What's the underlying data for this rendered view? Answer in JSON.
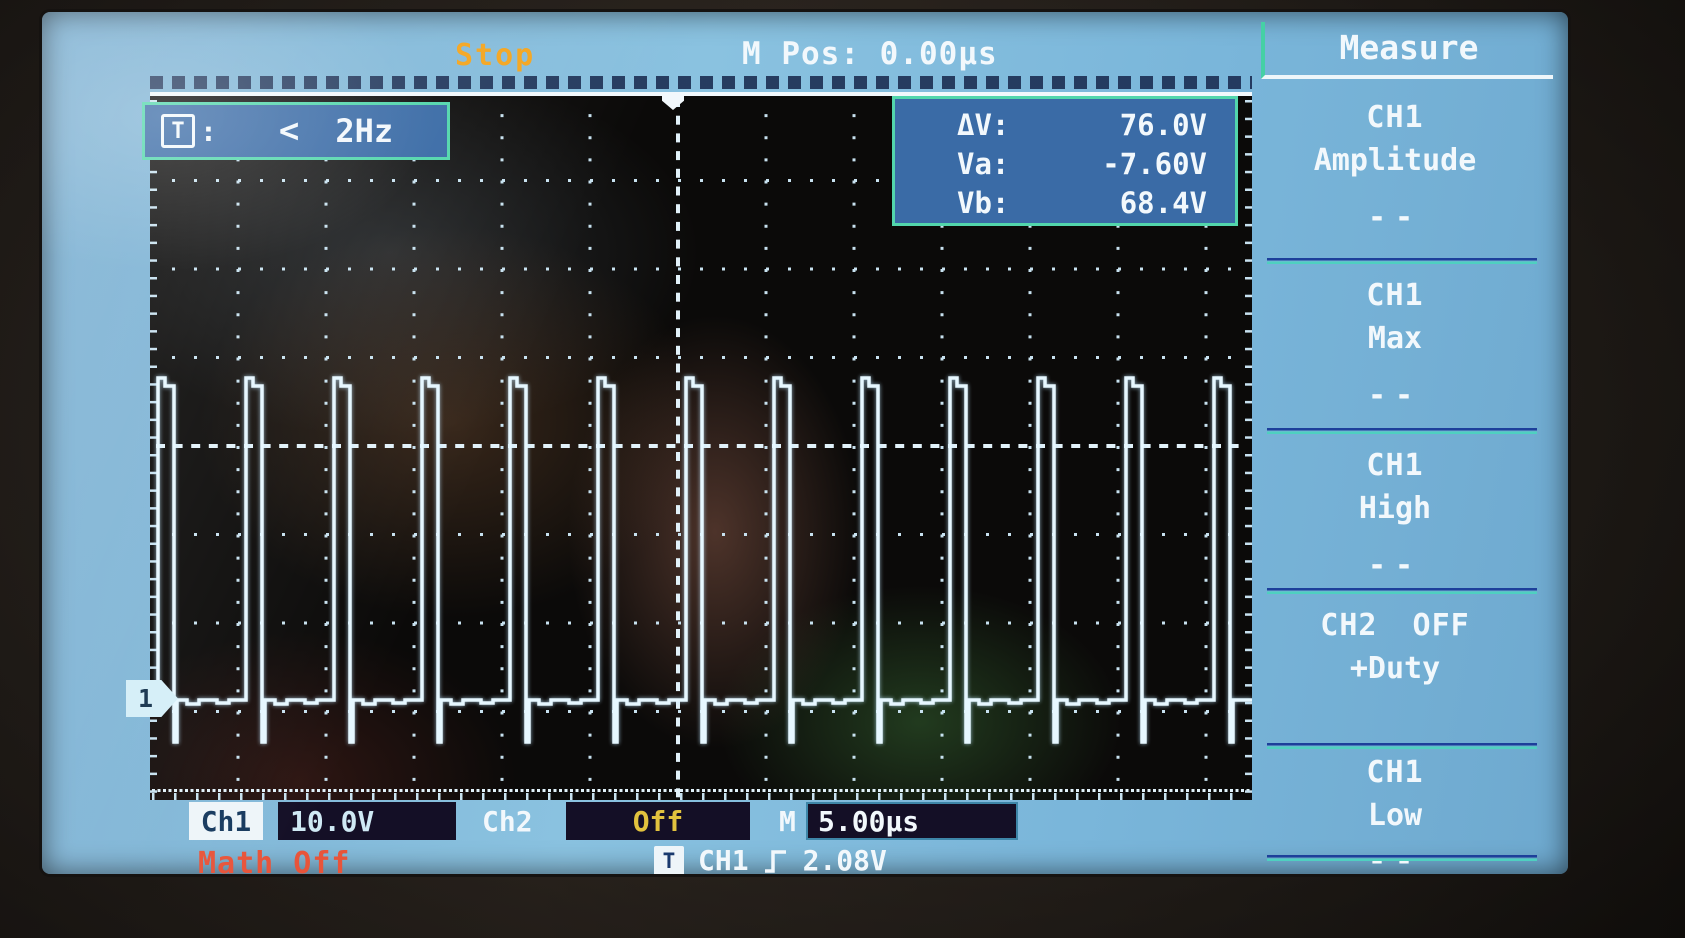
{
  "top_bar": {
    "acquisition_status": "Stop",
    "horizontal_position": "M Pos: 0.00µs"
  },
  "trigger_info": {
    "icon": "T",
    "separator": ":",
    "condition": "<",
    "frequency": "2Hz"
  },
  "measurement_overlay": {
    "rows": [
      {
        "label": "ΔV:",
        "value": "76.0V"
      },
      {
        "label": "Va:",
        "value": "-7.60V"
      },
      {
        "label": "Vb:",
        "value": "68.4V"
      }
    ]
  },
  "sidebar": {
    "title": "Measure",
    "items": [
      {
        "source": "CH1",
        "type": "Amplitude",
        "value": "--"
      },
      {
        "source": "CH1",
        "type": "Max",
        "value": "--"
      },
      {
        "source": "CH1",
        "type": "High",
        "value": "--"
      },
      {
        "source": "CH2 OFF",
        "type": "+Duty",
        "value": ""
      },
      {
        "source": "CH1",
        "type": "Low",
        "value": "--"
      }
    ]
  },
  "status_bar": {
    "ch1_label": "Ch1",
    "ch1_scale": "10.0V",
    "ch2_label": "Ch2",
    "ch2_state": "Off",
    "timebase_label": "M",
    "timebase": "5.00µs",
    "math_status": "Math Off",
    "trigger_icon": "T",
    "trigger_source": "CH1",
    "trigger_level": "2.08V"
  },
  "channel_marker": {
    "label": "1"
  },
  "waveform": {
    "channel": "CH1",
    "shape": "pulse-train",
    "pulses_visible": 13,
    "volts_per_div": "10.0V",
    "time_per_div": "5.00µs",
    "period_divisions": 1.0,
    "duty_cycle_est_percent": 15,
    "high_level_cursor_v": 68.4,
    "low_level_cursor_v": -7.6,
    "delta_v": 76.0
  },
  "colors": {
    "accent_teal": "#52d6ac",
    "stop_orange": "#f4a51f",
    "off_yellow": "#e2c23e",
    "math_red": "#e8543a",
    "trace": "#e6f7ff",
    "lcd_blue": "#7cb0d2",
    "overlay_blue": "#3a6ba6"
  }
}
